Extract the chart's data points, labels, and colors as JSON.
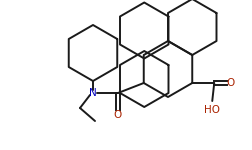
{
  "bg_color": "#ffffff",
  "line_color": "#1a1a1a",
  "N_color": "#0000bb",
  "O_color": "#aa2200",
  "line_width": 1.4,
  "figsize": [
    2.52,
    1.5
  ],
  "dpi": 100,
  "xlim": [
    -10,
    242
  ],
  "ylim": [
    -5,
    145
  ],
  "r_hex": 28
}
